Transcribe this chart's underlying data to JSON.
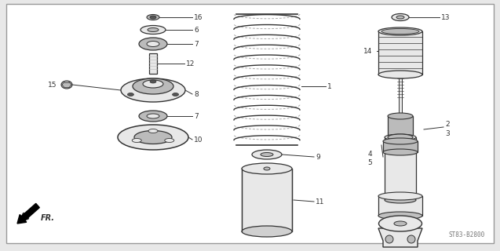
{
  "bg_color": "#e8e8e8",
  "diagram_bg": "#ffffff",
  "border_color": "#999999",
  "lc": "#333333",
  "pc": "#bbbbbb",
  "dk": "#555555",
  "lt": "#e8e8e8",
  "watermark": "ST83-B2800"
}
